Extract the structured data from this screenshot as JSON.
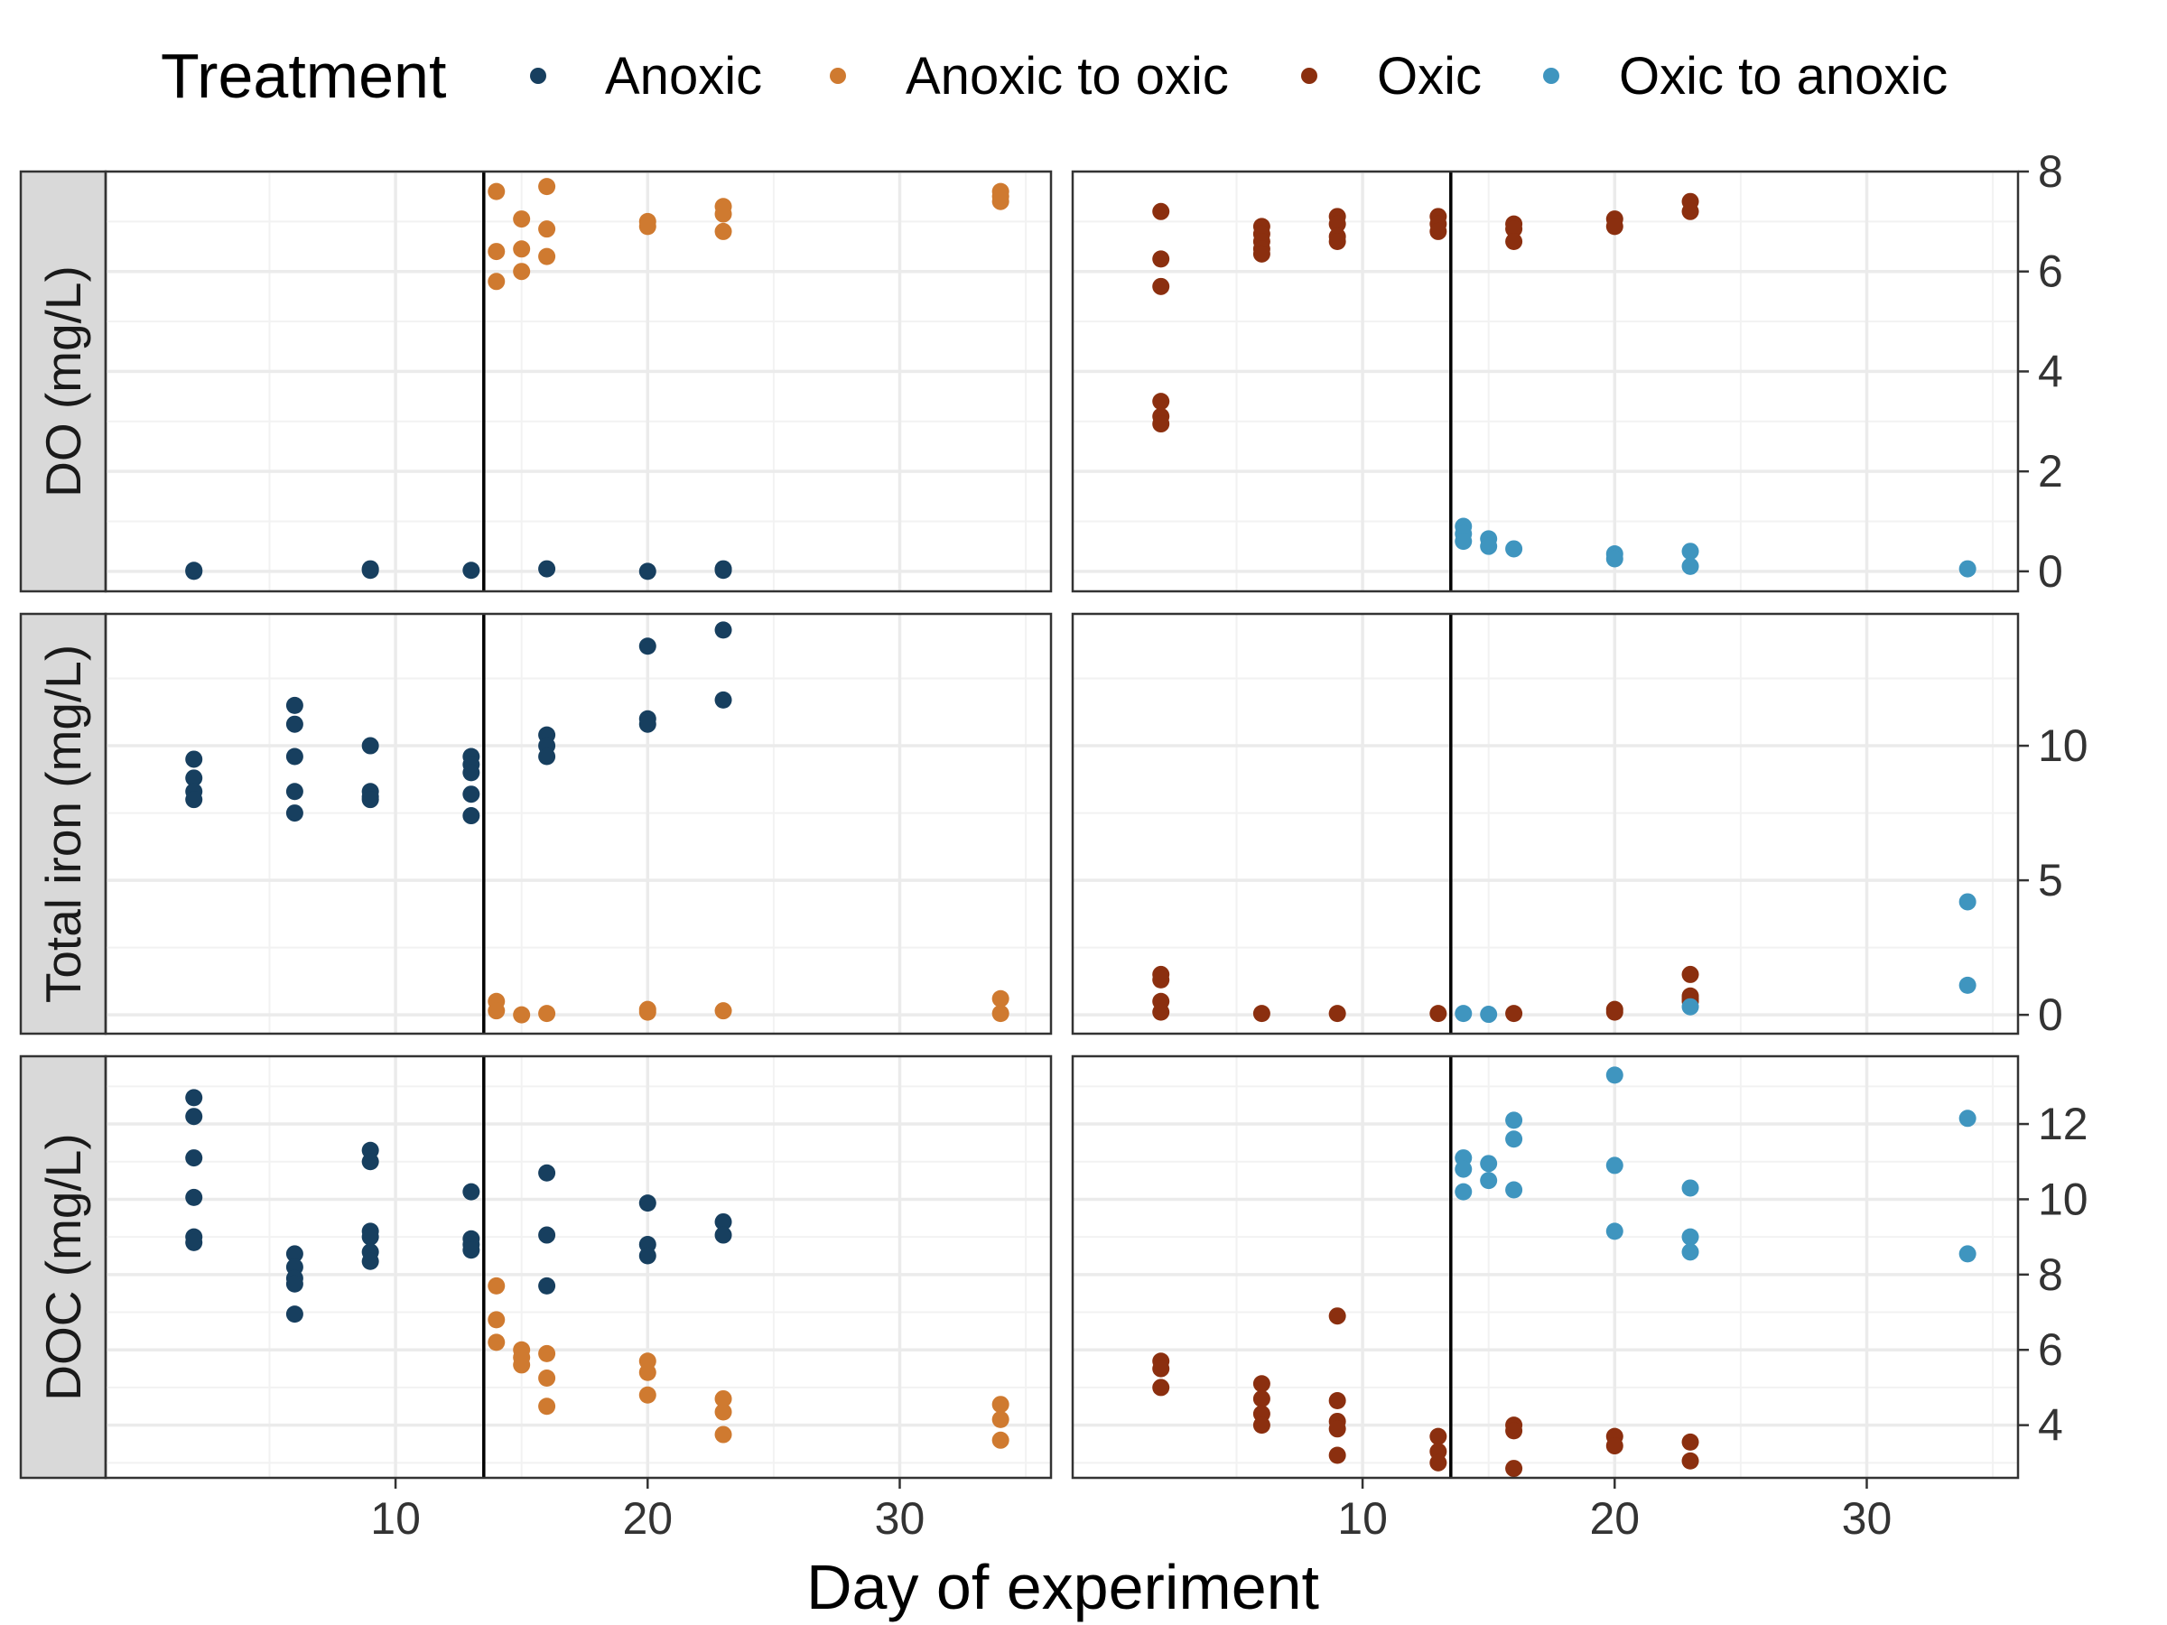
{
  "chart_data": {
    "type": "scatter",
    "xlabel": "Day of experiment",
    "x_ticks": [
      10,
      20,
      30
    ],
    "xlim": [
      -1.5,
      36
    ],
    "treatment_switch_day": 13.5,
    "legend": {
      "title": "Treatment",
      "position": "top",
      "entries": [
        "Anoxic",
        "Anoxic to oxic",
        "Oxic",
        "Oxic to anoxic"
      ]
    },
    "colors": {
      "Anoxic": "#173f5f",
      "Anoxic to oxic": "#cf7a30",
      "Oxic": "#8b2f0f",
      "Oxic to anoxic": "#3f95bf"
    },
    "grid": true,
    "rows": [
      {
        "label": "DO (mg/L)",
        "ylim": [
          -0.4,
          8
        ],
        "y_ticks": [
          0,
          2,
          4,
          6,
          8
        ],
        "y_minor": [
          1,
          3,
          5,
          7
        ],
        "left": [
          {
            "name": "Anoxic",
            "points": [
              [
                2,
                0
              ],
              [
                2,
                0.02
              ],
              [
                9,
                0.05
              ],
              [
                9,
                0.02
              ],
              [
                13,
                0.02
              ],
              [
                16,
                0.05
              ],
              [
                20,
                0
              ],
              [
                23,
                0.05
              ],
              [
                23,
                0.02
              ]
            ]
          },
          {
            "name": "Anoxic to oxic",
            "points": [
              [
                14,
                7.6
              ],
              [
                14,
                6.4
              ],
              [
                14,
                5.8
              ],
              [
                15,
                7.05
              ],
              [
                15,
                6.45
              ],
              [
                15,
                6.0
              ],
              [
                16,
                7.7
              ],
              [
                16,
                6.85
              ],
              [
                16,
                6.3
              ],
              [
                20,
                7.0
              ],
              [
                20,
                6.9
              ],
              [
                23,
                7.3
              ],
              [
                23,
                7.15
              ],
              [
                23,
                6.8
              ],
              [
                34,
                7.6
              ],
              [
                34,
                7.5
              ],
              [
                34,
                7.4
              ]
            ]
          }
        ],
        "right": [
          {
            "name": "Oxic",
            "points": [
              [
                2,
                7.2
              ],
              [
                2,
                6.25
              ],
              [
                2,
                5.7
              ],
              [
                2,
                3.4
              ],
              [
                2,
                3.1
              ],
              [
                2,
                2.95
              ],
              [
                6,
                6.9
              ],
              [
                6,
                6.75
              ],
              [
                6,
                6.6
              ],
              [
                6,
                6.45
              ],
              [
                6,
                6.35
              ],
              [
                9,
                7.1
              ],
              [
                9,
                6.95
              ],
              [
                9,
                6.7
              ],
              [
                9,
                6.6
              ],
              [
                13,
                7.1
              ],
              [
                13,
                6.95
              ],
              [
                13,
                6.8
              ],
              [
                16,
                6.95
              ],
              [
                16,
                6.85
              ],
              [
                16,
                6.6
              ],
              [
                20,
                7.05
              ],
              [
                20,
                6.9
              ],
              [
                23,
                7.4
              ],
              [
                23,
                7.2
              ]
            ]
          },
          {
            "name": "Oxic to anoxic",
            "points": [
              [
                14,
                0.9
              ],
              [
                14,
                0.75
              ],
              [
                14,
                0.6
              ],
              [
                15,
                0.65
              ],
              [
                15,
                0.5
              ],
              [
                16,
                0.45
              ],
              [
                20,
                0.35
              ],
              [
                20,
                0.25
              ],
              [
                23,
                0.4
              ],
              [
                23,
                0.1
              ],
              [
                34,
                0.05
              ]
            ]
          }
        ]
      },
      {
        "label": "Total iron (mg/L)",
        "ylim": [
          -0.7,
          14.9
        ],
        "y_ticks": [
          0,
          5,
          10
        ],
        "y_minor": [
          2.5,
          7.5,
          12.5
        ],
        "left": [
          {
            "name": "Anoxic",
            "points": [
              [
                2,
                9.5
              ],
              [
                2,
                8.8
              ],
              [
                2,
                8.3
              ],
              [
                2,
                8.0
              ],
              [
                6,
                11.5
              ],
              [
                6,
                10.8
              ],
              [
                6,
                9.6
              ],
              [
                6,
                8.3
              ],
              [
                6,
                7.5
              ],
              [
                9,
                10.0
              ],
              [
                9,
                8.3
              ],
              [
                9,
                8.1
              ],
              [
                9,
                8.0
              ],
              [
                13,
                9.6
              ],
              [
                13,
                9.3
              ],
              [
                13,
                9.0
              ],
              [
                13,
                8.2
              ],
              [
                13,
                7.4
              ],
              [
                16,
                10.4
              ],
              [
                16,
                10.0
              ],
              [
                16,
                9.6
              ],
              [
                20,
                13.7
              ],
              [
                20,
                11.0
              ],
              [
                20,
                10.8
              ],
              [
                23,
                14.3
              ],
              [
                23,
                11.7
              ]
            ]
          },
          {
            "name": "Anoxic to oxic",
            "points": [
              [
                14,
                0.5
              ],
              [
                14,
                0.15
              ],
              [
                15,
                0
              ],
              [
                16,
                0.05
              ],
              [
                20,
                0.2
              ],
              [
                20,
                0.1
              ],
              [
                23,
                0.15
              ],
              [
                34,
                0.6
              ],
              [
                34,
                0.05
              ]
            ]
          }
        ],
        "right": [
          {
            "name": "Oxic",
            "points": [
              [
                2,
                1.5
              ],
              [
                2,
                1.3
              ],
              [
                2,
                0.5
              ],
              [
                2,
                0.1
              ],
              [
                6,
                0.05
              ],
              [
                9,
                0.05
              ],
              [
                13,
                0.05
              ],
              [
                16,
                0.05
              ],
              [
                20,
                0.2
              ],
              [
                20,
                0.1
              ],
              [
                23,
                1.5
              ],
              [
                23,
                0.7
              ],
              [
                23,
                0.6
              ],
              [
                23,
                0.5
              ]
            ]
          },
          {
            "name": "Oxic to anoxic",
            "points": [
              [
                14,
                0.05
              ],
              [
                15,
                0.02
              ],
              [
                23,
                0.3
              ],
              [
                34,
                4.2
              ],
              [
                34,
                1.1
              ]
            ]
          }
        ]
      },
      {
        "label": "DOC (mg/L)",
        "ylim": [
          2.6,
          13.8
        ],
        "y_ticks": [
          4,
          6,
          8,
          10,
          12
        ],
        "y_minor": [
          3,
          5,
          7,
          9,
          11,
          13
        ],
        "left": [
          {
            "name": "Anoxic",
            "points": [
              [
                2,
                12.7
              ],
              [
                2,
                12.2
              ],
              [
                2,
                11.1
              ],
              [
                2,
                10.05
              ],
              [
                2,
                9.0
              ],
              [
                2,
                8.85
              ],
              [
                6,
                8.55
              ],
              [
                6,
                8.2
              ],
              [
                6,
                7.9
              ],
              [
                6,
                7.75
              ],
              [
                6,
                6.95
              ],
              [
                9,
                11.3
              ],
              [
                9,
                11.0
              ],
              [
                9,
                9.15
              ],
              [
                9,
                9.0
              ],
              [
                9,
                8.6
              ],
              [
                9,
                8.35
              ],
              [
                13,
                10.2
              ],
              [
                13,
                8.95
              ],
              [
                13,
                8.8
              ],
              [
                13,
                8.65
              ],
              [
                16,
                10.7
              ],
              [
                16,
                9.05
              ],
              [
                16,
                7.7
              ],
              [
                20,
                9.9
              ],
              [
                20,
                8.8
              ],
              [
                20,
                8.5
              ],
              [
                23,
                9.4
              ],
              [
                23,
                9.05
              ]
            ]
          },
          {
            "name": "Anoxic to oxic",
            "points": [
              [
                14,
                7.7
              ],
              [
                14,
                6.8
              ],
              [
                14,
                6.2
              ],
              [
                15,
                6.0
              ],
              [
                15,
                5.8
              ],
              [
                15,
                5.6
              ],
              [
                16,
                5.9
              ],
              [
                16,
                5.25
              ],
              [
                16,
                4.5
              ],
              [
                20,
                5.7
              ],
              [
                20,
                5.4
              ],
              [
                20,
                4.8
              ],
              [
                23,
                4.7
              ],
              [
                23,
                4.35
              ],
              [
                23,
                3.75
              ],
              [
                34,
                4.55
              ],
              [
                34,
                4.15
              ],
              [
                34,
                3.6
              ]
            ]
          }
        ],
        "right": [
          {
            "name": "Oxic",
            "points": [
              [
                2,
                5.7
              ],
              [
                2,
                5.5
              ],
              [
                2,
                5.0
              ],
              [
                6,
                5.1
              ],
              [
                6,
                4.7
              ],
              [
                6,
                4.3
              ],
              [
                6,
                4.0
              ],
              [
                9,
                6.9
              ],
              [
                9,
                4.65
              ],
              [
                9,
                4.1
              ],
              [
                9,
                3.9
              ],
              [
                9,
                3.2
              ],
              [
                13,
                3.7
              ],
              [
                13,
                3.3
              ],
              [
                13,
                3.0
              ],
              [
                16,
                4.0
              ],
              [
                16,
                3.85
              ],
              [
                16,
                2.85
              ],
              [
                20,
                3.7
              ],
              [
                20,
                3.45
              ],
              [
                23,
                3.55
              ],
              [
                23,
                3.05
              ]
            ]
          },
          {
            "name": "Oxic to anoxic",
            "points": [
              [
                14,
                11.1
              ],
              [
                14,
                10.8
              ],
              [
                14,
                10.2
              ],
              [
                15,
                10.95
              ],
              [
                15,
                10.5
              ],
              [
                16,
                12.1
              ],
              [
                16,
                11.6
              ],
              [
                16,
                10.25
              ],
              [
                20,
                13.3
              ],
              [
                20,
                10.9
              ],
              [
                20,
                9.15
              ],
              [
                23,
                10.3
              ],
              [
                23,
                9.0
              ],
              [
                23,
                8.6
              ],
              [
                34,
                12.15
              ],
              [
                34,
                8.55
              ]
            ]
          }
        ]
      }
    ]
  }
}
